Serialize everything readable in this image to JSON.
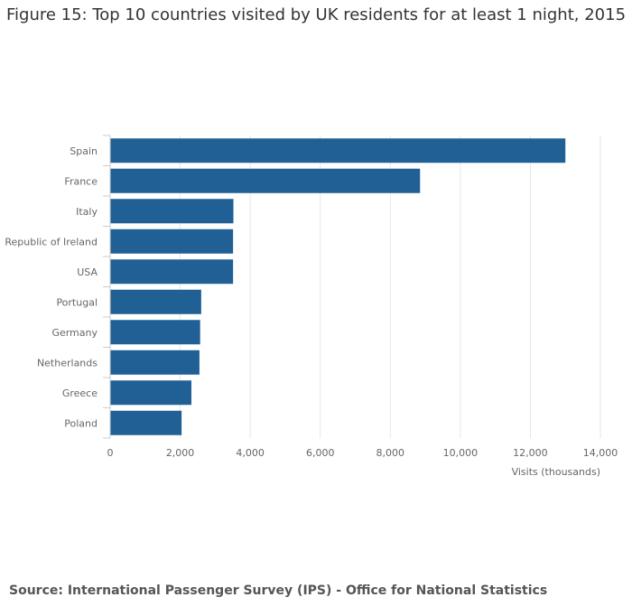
{
  "source": "Source: International Passenger Survey (IPS) - Office for National Statistics",
  "chart_data": {
    "type": "bar",
    "orientation": "horizontal",
    "title": "Figure 15: Top 10 countries visited by UK residents for at least 1 night, 2015",
    "xlabel": "Visits (thousands)",
    "ylabel": "",
    "categories": [
      "Spain",
      "France",
      "Italy",
      "Republic of Ireland",
      "USA",
      "Portugal",
      "Germany",
      "Netherlands",
      "Greece",
      "Poland"
    ],
    "values": [
      13000,
      8850,
      3520,
      3510,
      3510,
      2600,
      2570,
      2550,
      2320,
      2040
    ],
    "xlim": [
      0,
      14000
    ],
    "xticks": [
      0,
      2000,
      4000,
      6000,
      8000,
      10000,
      12000,
      14000
    ],
    "xtick_labels": [
      "0",
      "2,000",
      "4,000",
      "6,000",
      "8,000",
      "10,000",
      "12,000",
      "14,000"
    ],
    "grid": true,
    "legend": "none",
    "bar_color": "#206095",
    "grid_color": "#e6e6e6",
    "axis_color": "#cccccc",
    "label_color": "#666666"
  }
}
